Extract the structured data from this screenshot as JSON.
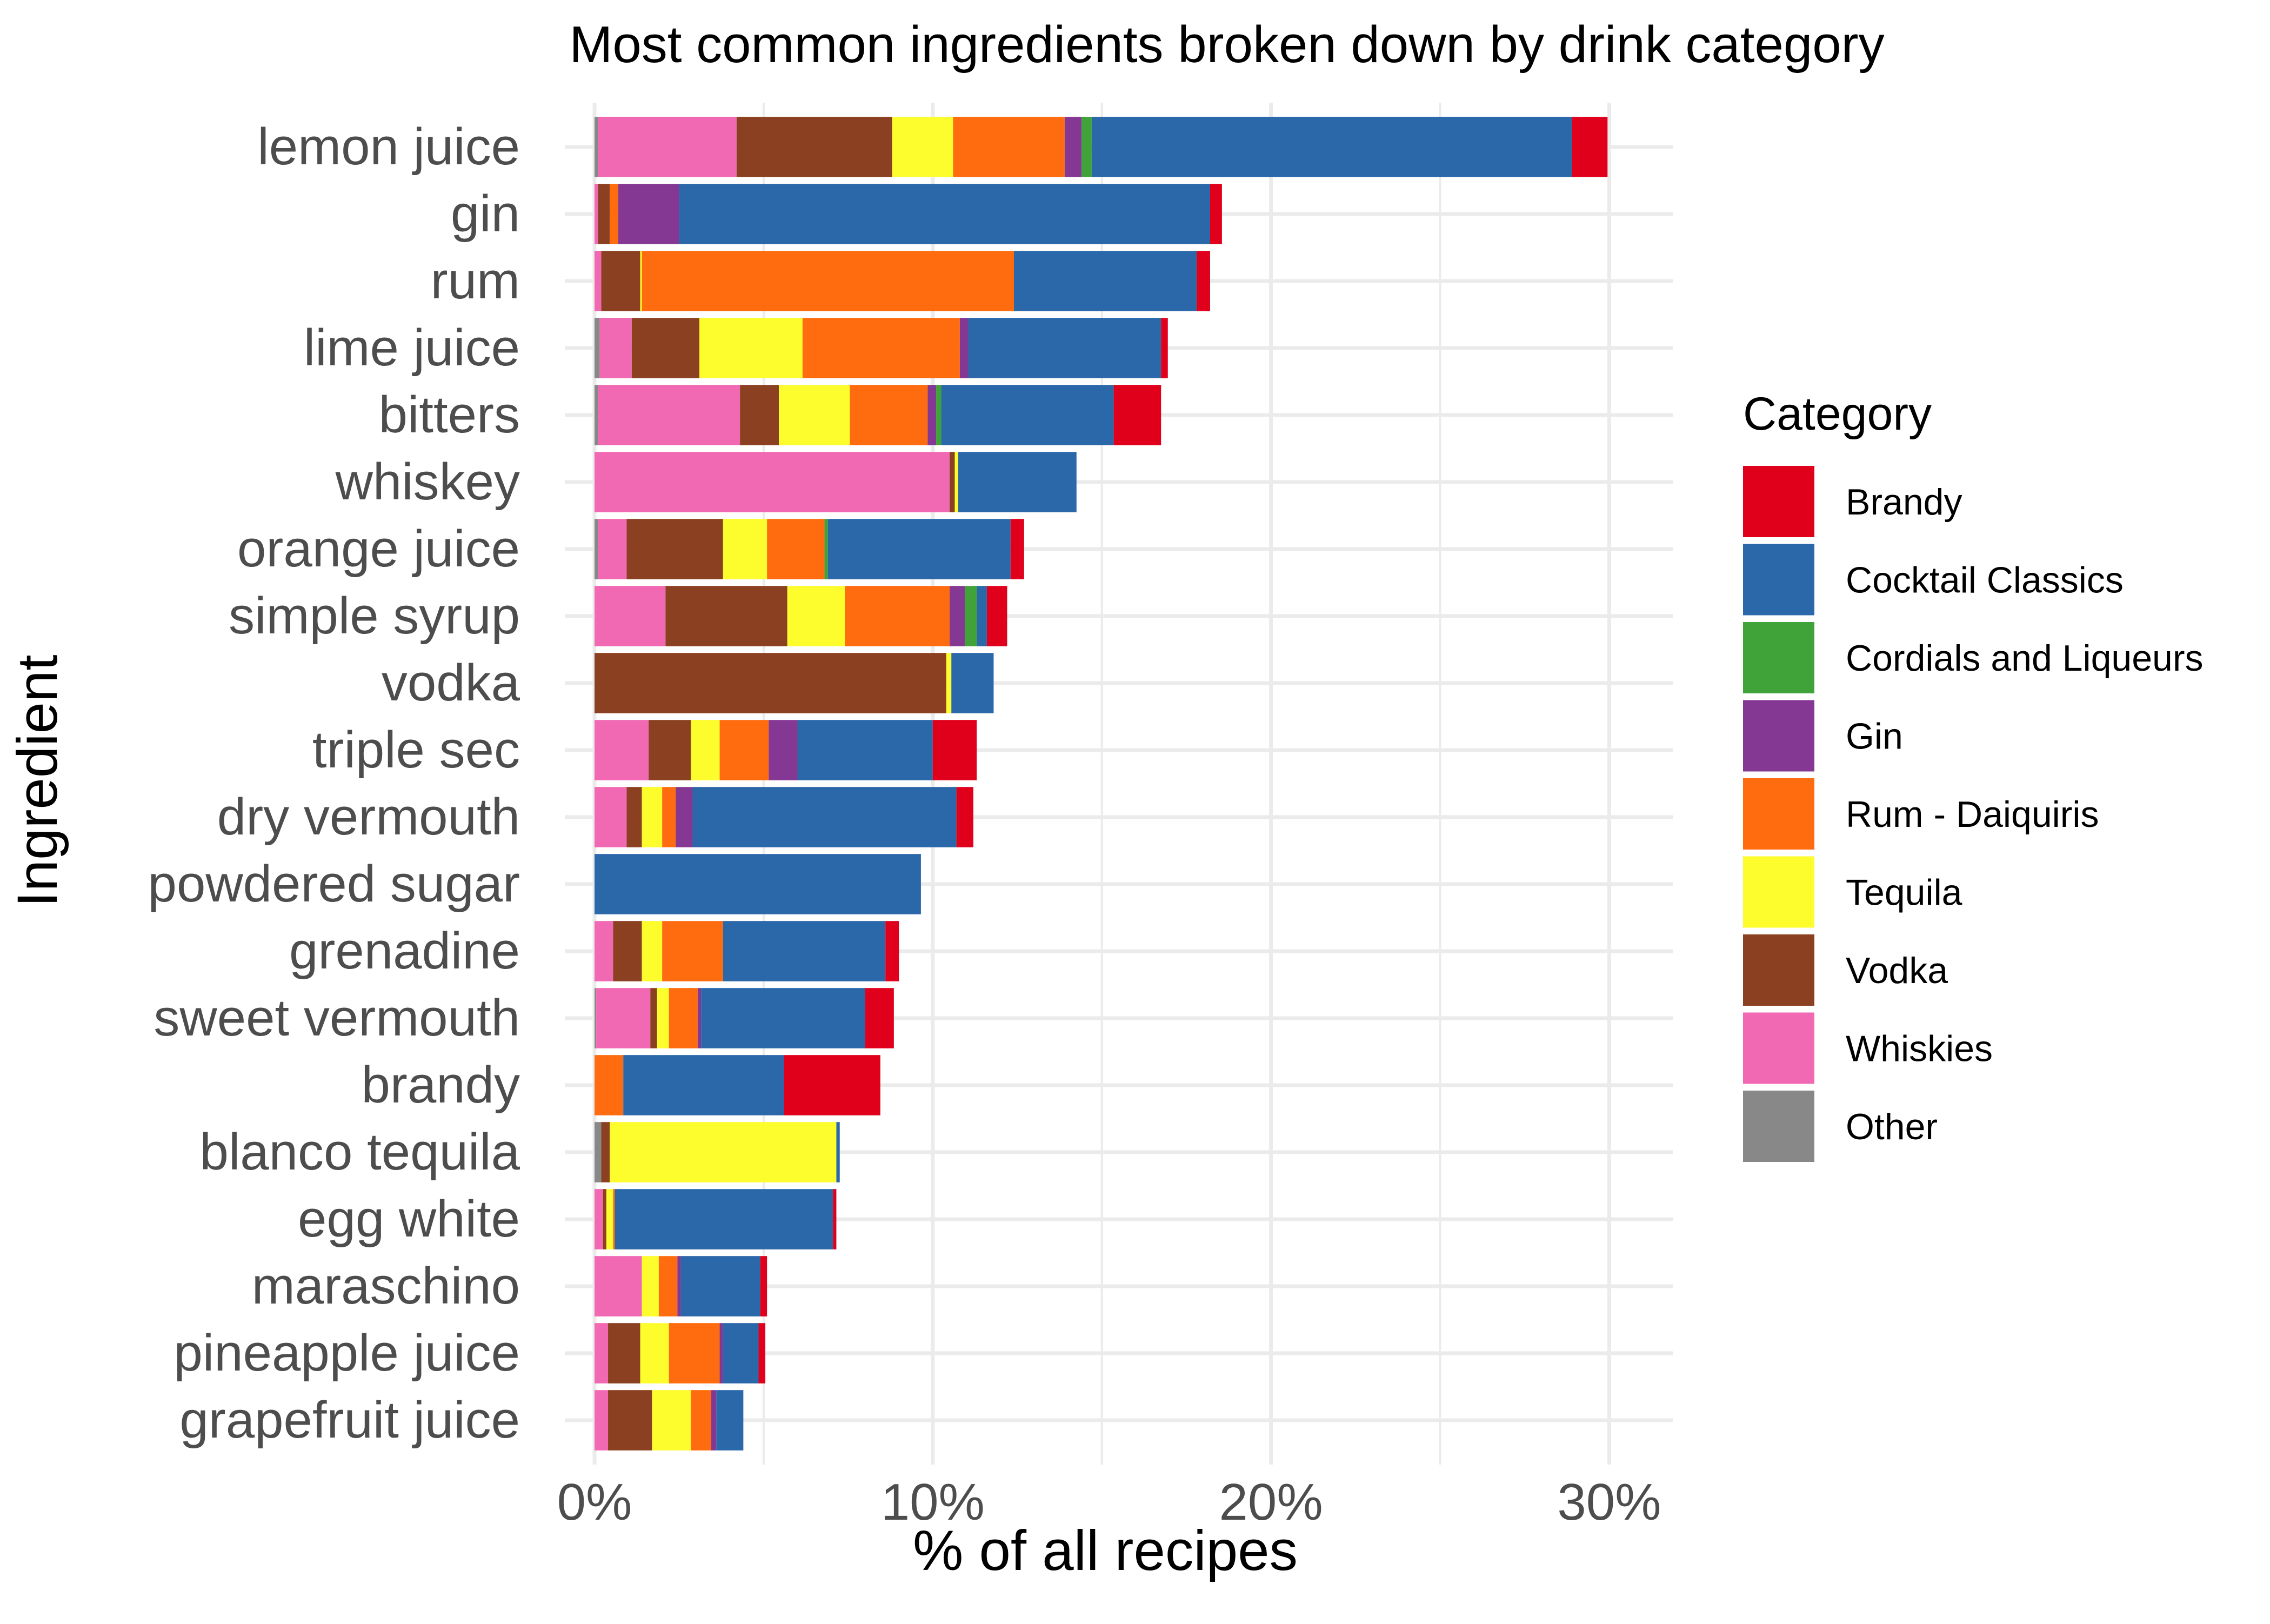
{
  "chart_data": {
    "type": "bar",
    "orientation": "horizontal",
    "stacked": true,
    "title": "Most common ingredients broken down by drink category",
    "xlabel": "% of all recipes",
    "ylabel": "Ingredient",
    "xlim": [
      0,
      31
    ],
    "xticks": [
      0,
      10,
      20,
      30
    ],
    "xtick_labels": [
      "0%",
      "10%",
      "20%",
      "30%"
    ],
    "grid": true,
    "legend_title": "Category",
    "legend_position": "right",
    "categories": [
      "lemon juice",
      "gin",
      "rum",
      "lime juice",
      "bitters",
      "whiskey",
      "orange juice",
      "simple syrup",
      "vodka",
      "triple sec",
      "dry vermouth",
      "powdered sugar",
      "grenadine",
      "sweet vermouth",
      "brandy",
      "blanco tequila",
      "egg white",
      "maraschino",
      "pineapple juice",
      "grapefruit juice"
    ],
    "series": [
      {
        "name": "Other",
        "color": "#888888",
        "values": [
          0.1,
          0,
          0,
          0.15,
          0.1,
          0,
          0.1,
          0,
          0,
          0,
          0,
          0,
          0,
          0.05,
          0,
          0.2,
          0,
          0,
          0,
          0
        ]
      },
      {
        "name": "Whiskies",
        "color": "#f169b3",
        "values": [
          4.1,
          0.1,
          0.2,
          0.95,
          4.2,
          10.5,
          0.85,
          2.1,
          0,
          1.6,
          0.95,
          0,
          0.55,
          1.6,
          0,
          0,
          0.25,
          1.4,
          0.4,
          0.4
        ]
      },
      {
        "name": "Vodka",
        "color": "#8b4121",
        "values": [
          4.6,
          0.35,
          1.15,
          2.0,
          1.15,
          0.15,
          2.85,
          3.6,
          10.4,
          1.25,
          0.45,
          0,
          0.85,
          0.2,
          0,
          0.25,
          0.1,
          0,
          0.95,
          1.3
        ]
      },
      {
        "name": "Tequila",
        "color": "#fdfc2c",
        "values": [
          1.8,
          0,
          0.05,
          3.05,
          2.1,
          0.1,
          1.3,
          1.7,
          0.15,
          0.85,
          0.6,
          0,
          0.6,
          0.35,
          0,
          6.7,
          0.2,
          0.5,
          0.85,
          1.15
        ]
      },
      {
        "name": "Rum - Daiquiris",
        "color": "#fe6c0f",
        "values": [
          3.3,
          0.25,
          11.0,
          4.65,
          2.3,
          0,
          1.7,
          3.1,
          0,
          1.45,
          0.4,
          0,
          1.8,
          0.85,
          0.85,
          0,
          0.05,
          0.55,
          1.5,
          0.6
        ]
      },
      {
        "name": "Gin",
        "color": "#843894",
        "values": [
          0.5,
          1.8,
          0,
          0.25,
          0.25,
          0,
          0,
          0.45,
          0,
          0.85,
          0.5,
          0,
          0,
          0.1,
          0,
          0,
          0,
          0.1,
          0.1,
          0.15
        ]
      },
      {
        "name": "Cordials and Liqueurs",
        "color": "#3fa33a",
        "values": [
          0.3,
          0,
          0,
          0,
          0.15,
          0,
          0.1,
          0.35,
          0,
          0,
          0,
          0,
          0,
          0,
          0,
          0,
          0,
          0,
          0,
          0
        ]
      },
      {
        "name": "Cocktail Classics",
        "color": "#2b68aa",
        "values": [
          14.2,
          15.7,
          5.4,
          5.7,
          5.1,
          3.5,
          5.4,
          0.3,
          1.25,
          4.0,
          7.8,
          9.65,
          4.8,
          4.85,
          4.75,
          0.1,
          6.45,
          2.35,
          1.05,
          0.8
        ]
      },
      {
        "name": "Brandy",
        "color": "#e0001c",
        "values": [
          1.05,
          0.35,
          0.4,
          0.2,
          1.4,
          0,
          0.4,
          0.6,
          0,
          1.3,
          0.5,
          0,
          0.4,
          0.85,
          2.85,
          0,
          0.1,
          0.2,
          0.2,
          0
        ]
      }
    ],
    "legend_order": [
      "Brandy",
      "Cocktail Classics",
      "Cordials and Liqueurs",
      "Gin",
      "Rum - Daiquiris",
      "Tequila",
      "Vodka",
      "Whiskies",
      "Other"
    ]
  }
}
